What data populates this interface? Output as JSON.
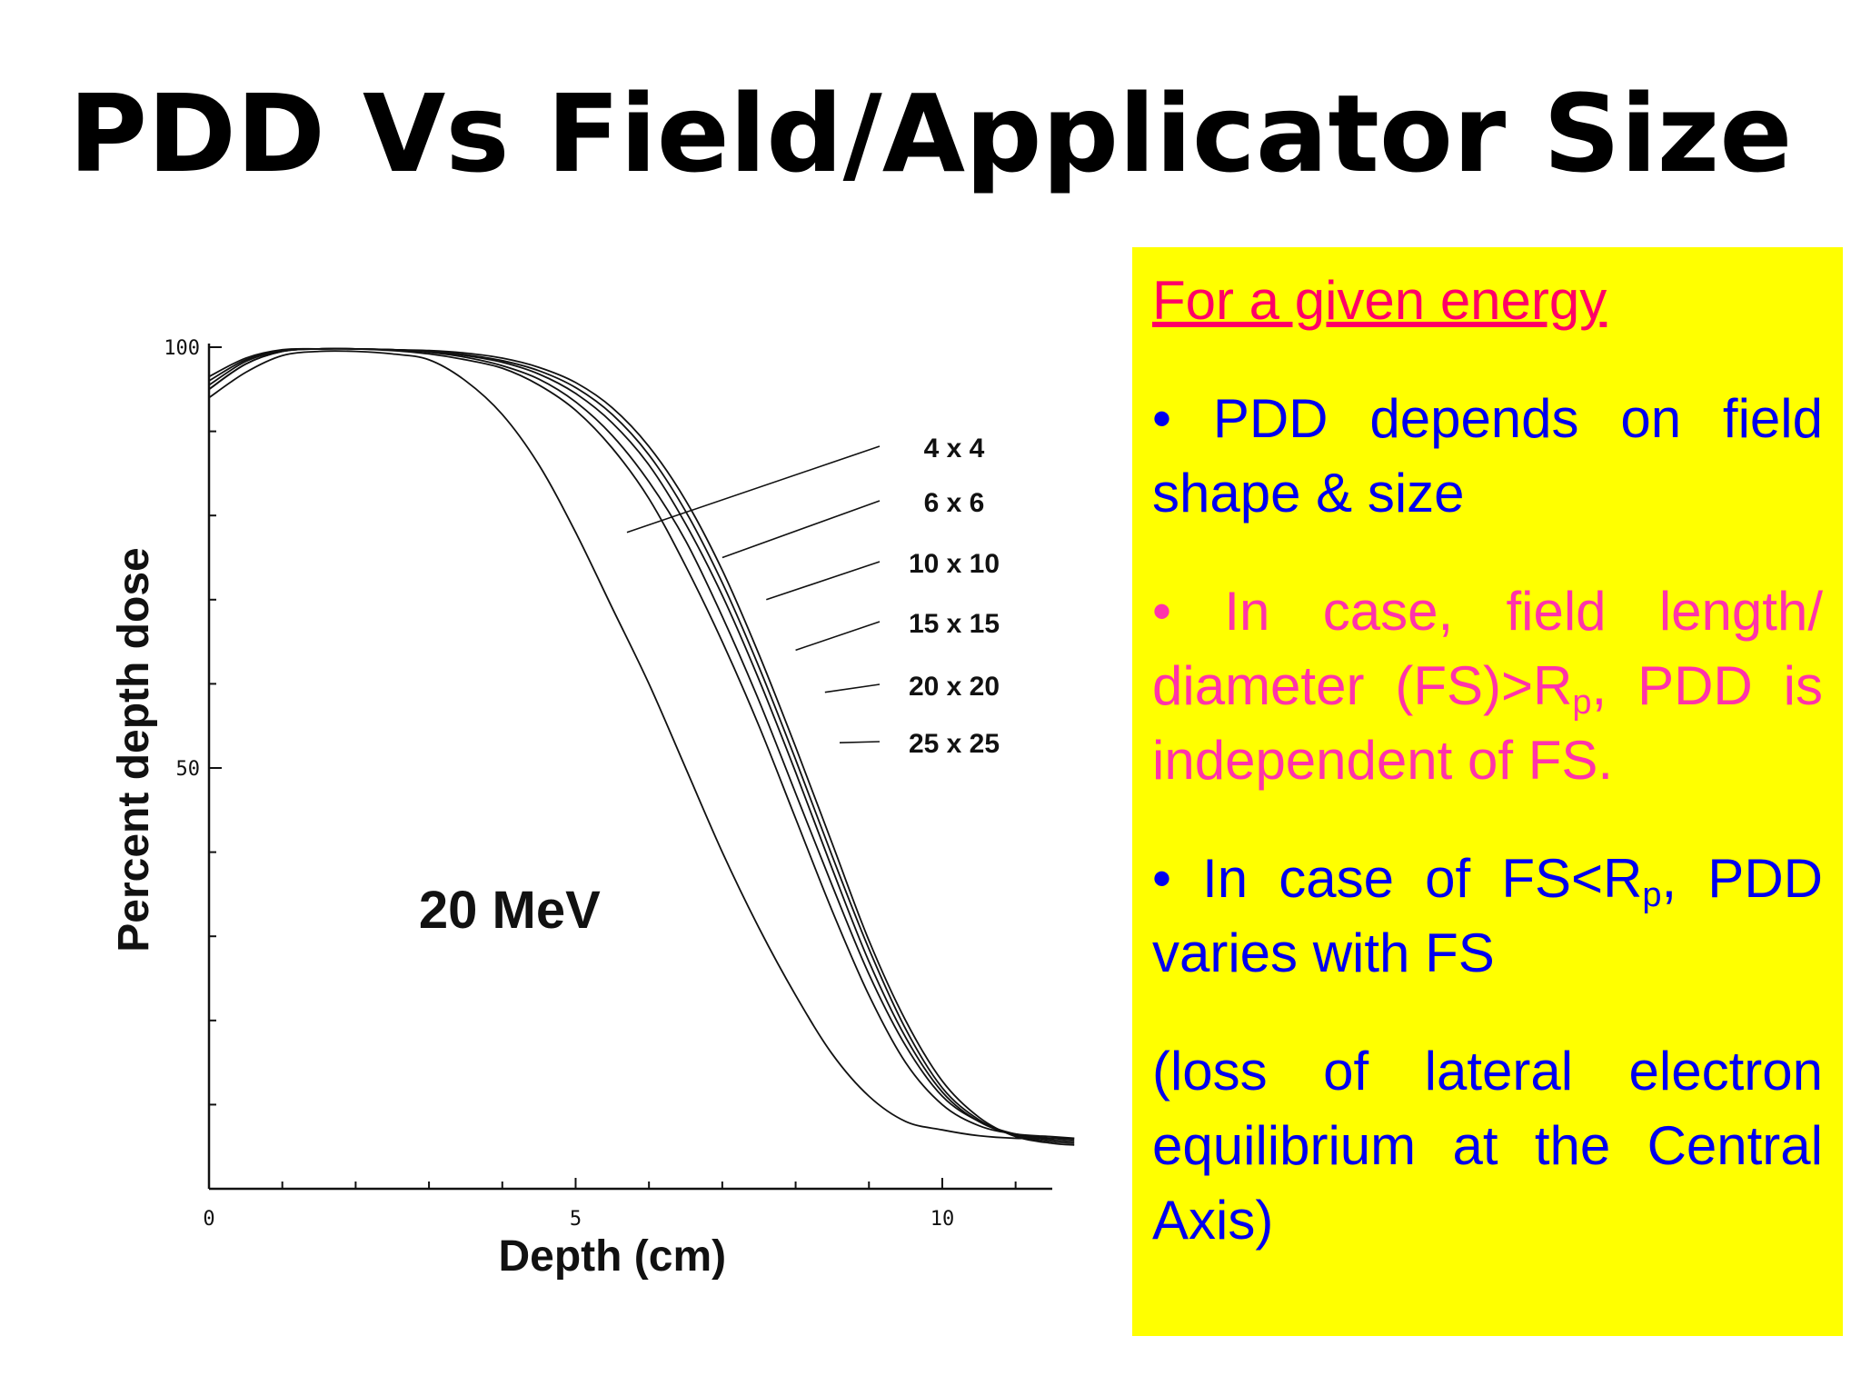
{
  "title": "PDD Vs Field/Applicator Size",
  "chart_data": {
    "type": "line",
    "title": "",
    "annotation": "20 MeV",
    "xlabel": "Depth (cm)",
    "ylabel": "Percent depth dose",
    "xlim": [
      0,
      11.5
    ],
    "ylim": [
      0,
      100
    ],
    "xticks": [
      "0",
      "5",
      "10"
    ],
    "yticks": [
      "50",
      "100"
    ],
    "x": [
      0,
      0.5,
      1,
      1.5,
      2,
      2.5,
      3,
      3.5,
      4,
      4.5,
      5,
      5.5,
      6,
      6.5,
      7,
      7.5,
      8,
      8.5,
      9,
      9.5,
      10,
      10.5,
      11,
      11.5,
      11.8
    ],
    "series": [
      {
        "name": "4 x 4",
        "values": [
          94,
          97,
          99,
          99.5,
          99.5,
          99.2,
          98.5,
          96,
          92,
          86,
          78,
          69,
          60,
          50,
          40,
          31,
          23,
          16,
          11,
          8,
          7,
          6.3,
          6,
          6,
          6
        ]
      },
      {
        "name": "6 x 6",
        "values": [
          95,
          98,
          99.5,
          99.8,
          99.8,
          99.6,
          99.2,
          98.5,
          97.5,
          95.5,
          92.5,
          88,
          82,
          74,
          65,
          55,
          44,
          33,
          23,
          15,
          10,
          7.5,
          6.5,
          6.2,
          6
        ]
      },
      {
        "name": "10 x 10",
        "values": [
          95,
          98,
          99.5,
          99.8,
          99.8,
          99.7,
          99.4,
          98.8,
          97.8,
          96.2,
          93.5,
          89.5,
          84,
          77,
          68,
          58,
          47,
          36,
          25.5,
          17,
          11,
          8,
          6.5,
          6,
          5.8
        ]
      },
      {
        "name": "15 x 15",
        "values": [
          95.5,
          98.3,
          99.6,
          99.8,
          99.8,
          99.7,
          99.5,
          99,
          98.2,
          96.8,
          94.5,
          91,
          86,
          79,
          70.5,
          60.5,
          49.5,
          38,
          27,
          18,
          11.5,
          8,
          6.4,
          5.8,
          5.6
        ]
      },
      {
        "name": "20 x 20",
        "values": [
          96,
          98.5,
          99.6,
          99.8,
          99.8,
          99.7,
          99.5,
          99.1,
          98.4,
          97.2,
          95.2,
          92,
          87.2,
          80.5,
          72,
          62,
          51,
          39.5,
          28.5,
          19,
          12,
          8.2,
          6.3,
          5.6,
          5.4
        ]
      },
      {
        "name": "25 x 25",
        "values": [
          96.5,
          98.7,
          99.7,
          99.8,
          99.8,
          99.7,
          99.6,
          99.3,
          98.7,
          97.6,
          95.8,
          92.8,
          88.2,
          81.8,
          73.5,
          63.5,
          52.5,
          41,
          29.5,
          20,
          12.8,
          8.5,
          6.2,
          5.4,
          5.2
        ]
      }
    ],
    "legend": {
      "placement": "right",
      "entries": [
        "4 x 4",
        "6 x 6",
        "10 x 10",
        "15 x 15",
        "20 x 20",
        "25 x 25"
      ]
    },
    "grid": false
  },
  "note": {
    "heading": "For a given energy",
    "bullet1": "• PDD depends on field shape & size",
    "bullet2_pre": "• In case, field length/ diameter (FS)>R",
    "bullet2_sub": "p",
    "bullet2_post": ", PDD is independent of FS.",
    "bullet3_pre": "• In case of FS<R",
    "bullet3_sub": "p",
    "bullet3_post": ", PDD varies with FS",
    "paren": "(loss of lateral electron equilibrium at the Central Axis)"
  },
  "colors": {
    "note_bg": "#ffff00",
    "blue_text": "#0000ee",
    "pink_text": "#ff33aa",
    "heading": "#ff0066"
  }
}
